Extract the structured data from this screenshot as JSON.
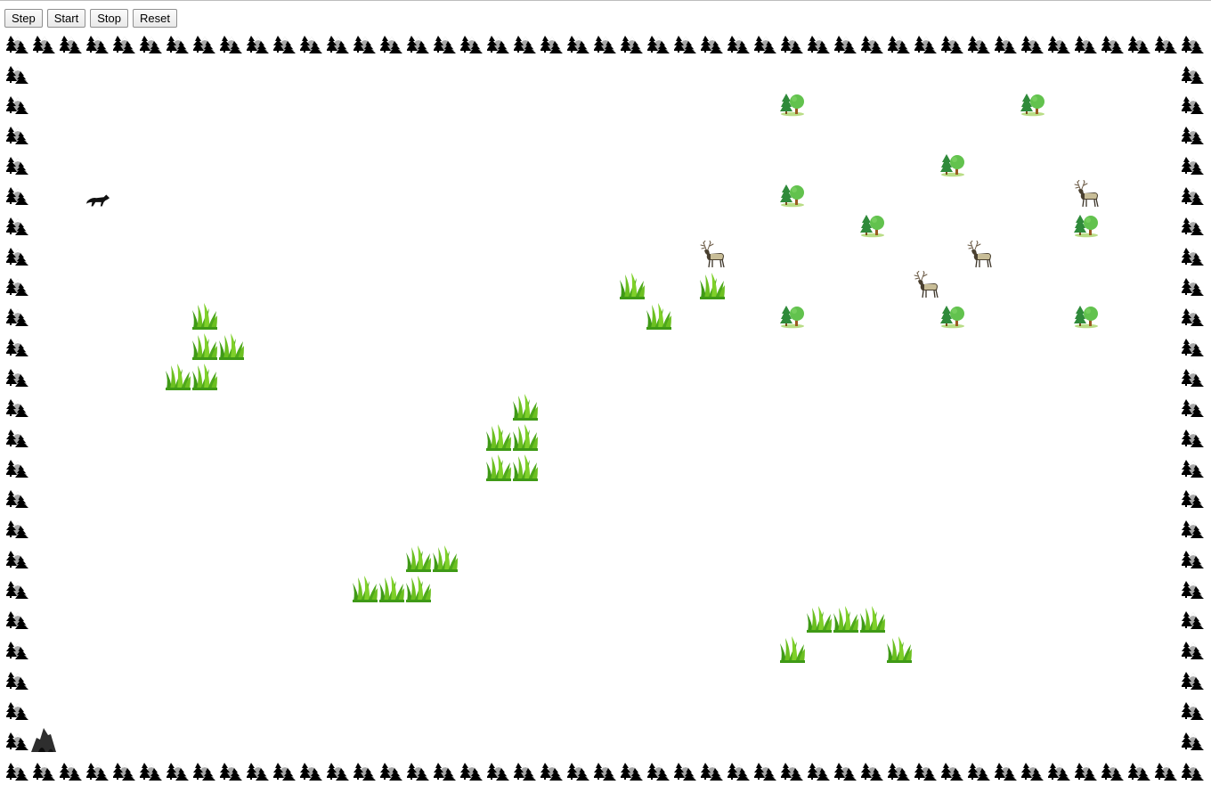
{
  "toolbar": {
    "step_label": "Step",
    "start_label": "Start",
    "stop_label": "Stop",
    "reset_label": "Reset"
  },
  "world": {
    "grid": {
      "columns": 45,
      "rows": 25
    },
    "border_tile": "mountain-forest-icon",
    "trees": [
      [
        29,
        2
      ],
      [
        38,
        2
      ],
      [
        35,
        4
      ],
      [
        29,
        5
      ],
      [
        32,
        6
      ],
      [
        40,
        6
      ],
      [
        29,
        9
      ],
      [
        35,
        9
      ],
      [
        40,
        9
      ]
    ],
    "elk": [
      [
        40,
        5
      ],
      [
        26,
        7
      ],
      [
        36,
        7
      ],
      [
        34,
        8
      ]
    ],
    "wolf": [
      [
        3,
        5
      ]
    ],
    "den": [
      [
        1,
        23
      ]
    ],
    "grass": [
      [
        23,
        8
      ],
      [
        26,
        8
      ],
      [
        24,
        9
      ],
      [
        7,
        9
      ],
      [
        7,
        10
      ],
      [
        8,
        10
      ],
      [
        6,
        11
      ],
      [
        7,
        11
      ],
      [
        19,
        12
      ],
      [
        18,
        13
      ],
      [
        19,
        13
      ],
      [
        18,
        14
      ],
      [
        19,
        14
      ],
      [
        15,
        17
      ],
      [
        16,
        17
      ],
      [
        13,
        18
      ],
      [
        14,
        18
      ],
      [
        15,
        18
      ],
      [
        30,
        19
      ],
      [
        31,
        19
      ],
      [
        32,
        19
      ],
      [
        29,
        20
      ],
      [
        33,
        20
      ]
    ]
  }
}
